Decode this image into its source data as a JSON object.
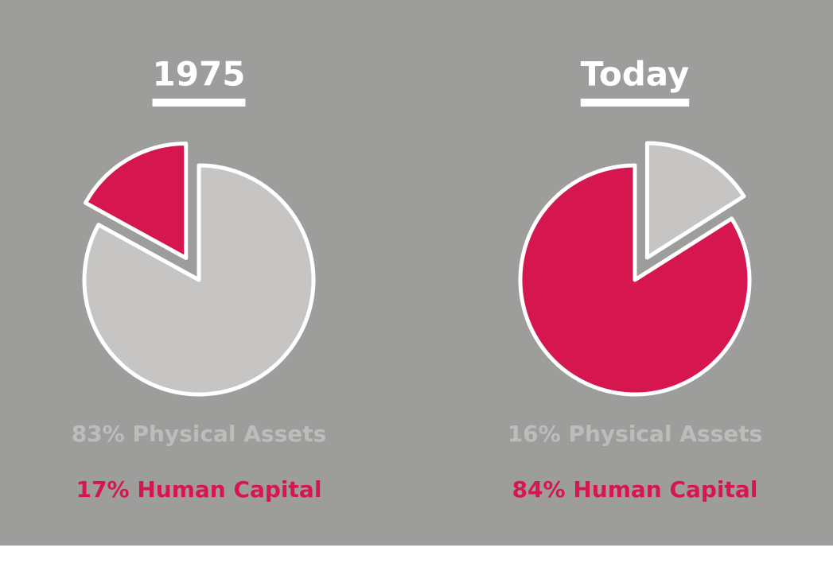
{
  "chart_data": [
    {
      "type": "pie",
      "title": "1975",
      "values": [
        83,
        17
      ],
      "value_labels": [
        "83% Physical Assets",
        "17% Human Capital"
      ],
      "colors": [
        "#c6c5c4",
        "#d6174f"
      ]
    },
    {
      "type": "pie",
      "title": "Today",
      "values": [
        16,
        84
      ],
      "value_labels": [
        "16% Physical Assets",
        "84% Human Capital"
      ],
      "colors": [
        "#c6c5c4",
        "#d6174f"
      ]
    }
  ]
}
